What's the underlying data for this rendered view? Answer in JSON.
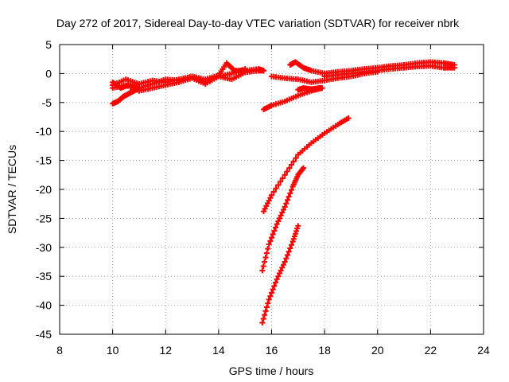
{
  "chart_data": {
    "type": "scatter",
    "title": "Day 272 of 2017, Sidereal Day-to-day VTEC variation (SDTVAR) for receiver nbrk",
    "xlabel": "GPS time / hours",
    "ylabel": "SDTVAR / TECUs",
    "xlim": [
      8,
      24
    ],
    "ylim": [
      -45,
      5
    ],
    "xticks": [
      8,
      10,
      12,
      14,
      16,
      18,
      20,
      22,
      24
    ],
    "yticks": [
      5,
      0,
      -5,
      -10,
      -15,
      -20,
      -25,
      -30,
      -35,
      -40,
      -45
    ],
    "grid": true,
    "marker": "plus",
    "color": "#ff0000",
    "series": [
      {
        "x": [
          10.0,
          10.5,
          11.0,
          11.5,
          12.0,
          12.5,
          13.0,
          13.5,
          14.0,
          14.5,
          15.0,
          15.5,
          15.7
        ],
        "y": [
          -2.0,
          -1.0,
          -1.8,
          -1.2,
          -1.5,
          -1.0,
          -0.5,
          -1.5,
          -0.5,
          -1.0,
          0.2,
          0.5,
          0.5
        ]
      },
      {
        "x": [
          10.0,
          10.5,
          11.0,
          11.5,
          12.0,
          12.5,
          13.0,
          13.5,
          14.0,
          14.5,
          15.0
        ],
        "y": [
          -2.5,
          -2.0,
          -3.0,
          -2.5,
          -2.0,
          -1.5,
          -0.8,
          -1.8,
          -0.5,
          0.0,
          0.8
        ]
      },
      {
        "x": [
          10.0,
          10.3,
          10.6,
          11.0,
          11.5,
          12.0,
          12.5,
          13.0,
          13.5,
          14.0,
          14.3,
          14.6,
          15.0,
          15.5,
          15.7
        ],
        "y": [
          -1.5,
          -2.5,
          -2.0,
          -2.5,
          -1.8,
          -1.0,
          -1.2,
          -0.5,
          -1.0,
          -0.3,
          1.8,
          0.5,
          0.5,
          0.8,
          0.5
        ]
      },
      {
        "x": [
          10.0,
          10.2,
          10.4,
          10.6,
          10.8,
          11.0
        ],
        "y": [
          -5.2,
          -4.8,
          -4.0,
          -3.5,
          -3.0,
          -2.5
        ]
      },
      {
        "x": [
          15.7,
          16.0,
          16.5,
          17.0,
          17.5,
          17.9
        ],
        "y": [
          -6.2,
          -5.5,
          -4.8,
          -3.8,
          -3.0,
          -2.5
        ]
      },
      {
        "x": [
          17.0,
          17.2,
          17.5,
          17.8,
          17.9
        ],
        "y": [
          -2.8,
          -2.5,
          -2.7,
          -2.5,
          -2.5
        ]
      },
      {
        "x": [
          16.0,
          16.5,
          17.0,
          17.5,
          18.0,
          18.5,
          19.0,
          19.5,
          20.0
        ],
        "y": [
          -0.5,
          -0.8,
          -1.0,
          -1.5,
          -1.2,
          -0.8,
          -0.5,
          0.0,
          0.3
        ]
      },
      {
        "x": [
          16.7,
          16.9,
          17.2,
          17.5,
          18.0,
          18.5,
          19.0,
          19.5,
          20.0,
          20.5,
          21.0,
          21.5,
          22.0,
          22.5,
          22.9
        ],
        "y": [
          1.5,
          2.0,
          1.0,
          0.5,
          0.0,
          0.3,
          0.5,
          0.8,
          1.0,
          1.3,
          1.5,
          1.8,
          2.0,
          1.8,
          1.5
        ]
      },
      {
        "x": [
          18.0,
          18.5,
          19.0,
          19.5,
          20.0,
          20.5,
          21.0,
          21.5,
          22.0,
          22.5,
          22.9
        ],
        "y": [
          -0.5,
          -0.2,
          0.0,
          0.3,
          0.5,
          0.8,
          1.0,
          1.2,
          1.3,
          1.0,
          1.0
        ]
      },
      {
        "x": [
          15.7,
          16.0,
          16.5,
          17.0,
          17.5,
          18.0,
          18.5,
          18.9
        ],
        "y": [
          -23.8,
          -21.0,
          -17.5,
          -14.0,
          -12.0,
          -10.3,
          -8.8,
          -7.7
        ]
      },
      {
        "x": [
          15.65,
          15.9,
          16.2,
          16.5,
          16.8,
          17.0,
          17.2
        ],
        "y": [
          -34.0,
          -29.5,
          -26.0,
          -23.0,
          -19.5,
          -17.5,
          -16.3
        ]
      },
      {
        "x": [
          15.65,
          15.9,
          16.2,
          16.5,
          16.8,
          17.0
        ],
        "y": [
          -43.0,
          -39.0,
          -35.5,
          -32.5,
          -29.0,
          -26.3
        ]
      }
    ]
  }
}
